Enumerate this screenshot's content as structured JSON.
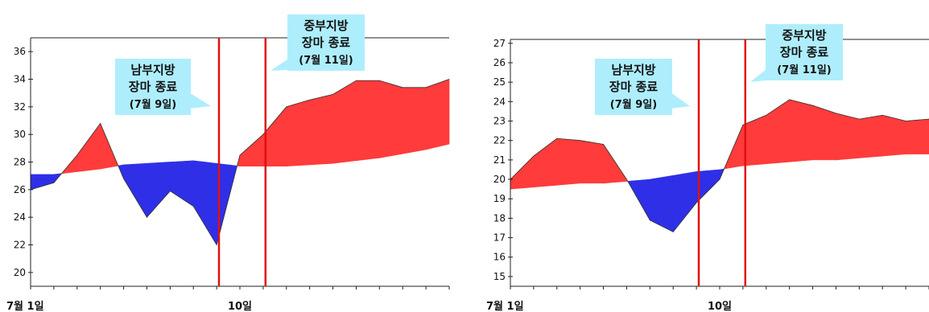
{
  "colors": {
    "above_normal": "#ff3b3b",
    "below_normal": "#2f2fe8",
    "event_line": "#e01010",
    "callout_fill": "#aeeefc"
  },
  "chart_data": [
    {
      "type": "area",
      "ylim": [
        19,
        37
      ],
      "yticks": [
        20,
        22,
        24,
        26,
        28,
        30,
        32,
        34,
        36
      ],
      "xlim": [
        1,
        19
      ],
      "x_tick_labels": [
        {
          "x": 1,
          "label": "7월 1일"
        },
        {
          "x": 10,
          "label": "10일"
        }
      ],
      "x": [
        1,
        2,
        3,
        4,
        5,
        6,
        7,
        8,
        9,
        10,
        11,
        12,
        13,
        14,
        15,
        16,
        17,
        18,
        19
      ],
      "series": [
        {
          "role": "observed",
          "values": [
            26.0,
            26.5,
            28.5,
            30.8,
            26.8,
            24.0,
            25.9,
            24.8,
            22.0,
            28.5,
            30.0,
            32.0,
            32.5,
            32.9,
            33.9,
            33.9,
            33.4,
            33.4,
            34.0
          ]
        },
        {
          "role": "normal",
          "values": [
            27.1,
            27.1,
            27.3,
            27.5,
            27.8,
            27.9,
            28.0,
            28.1,
            27.9,
            27.7,
            27.7,
            27.7,
            27.8,
            27.9,
            28.1,
            28.3,
            28.6,
            28.9,
            29.3
          ]
        }
      ],
      "events": [
        {
          "x": 9.1,
          "callout": [
            "남부지방",
            "장마 종료",
            "(7월 9일)"
          ]
        },
        {
          "x": 11.1,
          "callout": [
            "중부지방",
            "장마 종료",
            "(7월 11일)"
          ]
        }
      ]
    },
    {
      "type": "area",
      "ylim": [
        14.5,
        27.2
      ],
      "yticks": [
        15,
        16,
        17,
        18,
        19,
        20,
        21,
        22,
        23,
        24,
        25,
        26,
        27
      ],
      "xlim": [
        1,
        19
      ],
      "x_tick_labels": [
        {
          "x": 1,
          "label": "7월 1일"
        },
        {
          "x": 10,
          "label": "10일"
        }
      ],
      "x": [
        1,
        2,
        3,
        4,
        5,
        6,
        7,
        8,
        9,
        10,
        11,
        12,
        13,
        14,
        15,
        16,
        17,
        18,
        19
      ],
      "series": [
        {
          "role": "observed",
          "values": [
            20.0,
            21.2,
            22.1,
            22.0,
            21.8,
            20.0,
            17.9,
            17.3,
            18.8,
            20.0,
            22.8,
            23.3,
            24.1,
            23.8,
            23.4,
            23.1,
            23.3,
            23.0,
            23.1
          ]
        },
        {
          "role": "normal",
          "values": [
            19.5,
            19.6,
            19.7,
            19.8,
            19.8,
            19.9,
            20.0,
            20.2,
            20.4,
            20.5,
            20.7,
            20.8,
            20.9,
            21.0,
            21.0,
            21.1,
            21.2,
            21.3,
            21.3
          ]
        }
      ],
      "events": [
        {
          "x": 9.1,
          "callout": [
            "남부지방",
            "장마 종료",
            "(7월 9일)"
          ]
        },
        {
          "x": 11.1,
          "callout": [
            "중부지방",
            "장마 종료",
            "(7월 11일)"
          ]
        }
      ]
    }
  ]
}
